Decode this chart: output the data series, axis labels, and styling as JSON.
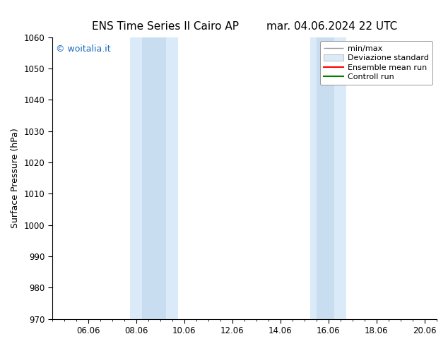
{
  "title_left": "ENS Time Series Il Cairo AP",
  "title_right": "mar. 04.06.2024 22 UTC",
  "ylabel": "Surface Pressure (hPa)",
  "ylim": [
    970,
    1060
  ],
  "yticks": [
    970,
    980,
    990,
    1000,
    1010,
    1020,
    1030,
    1040,
    1050,
    1060
  ],
  "xtick_labels": [
    "06.06",
    "08.06",
    "10.06",
    "12.06",
    "14.06",
    "16.06",
    "18.06",
    "20.06"
  ],
  "xtick_positions": [
    2,
    4,
    6,
    8,
    10,
    12,
    14,
    16
  ],
  "x_min": 0.5,
  "x_max": 16.5,
  "watermark_text": "© woitalia.it",
  "watermark_color": "#1a6abf",
  "background_color": "#ffffff",
  "band_outer_color": "#dbeaf8",
  "band_inner_color": "#c8ddf0",
  "band1_outer": [
    3.75,
    5.75
  ],
  "band1_inner": [
    4.25,
    5.25
  ],
  "band2_outer": [
    11.25,
    12.75
  ],
  "band2_inner": [
    11.5,
    12.25
  ],
  "legend_items": [
    {
      "label": "min/max",
      "color": "#aaaaaa"
    },
    {
      "label": "Deviazione standard",
      "color": "#c8ddf0"
    },
    {
      "label": "Ensemble mean run",
      "color": "red"
    },
    {
      "label": "Controll run",
      "color": "green"
    }
  ],
  "title_fontsize": 11,
  "axis_label_fontsize": 9,
  "tick_fontsize": 8.5,
  "legend_fontsize": 8
}
